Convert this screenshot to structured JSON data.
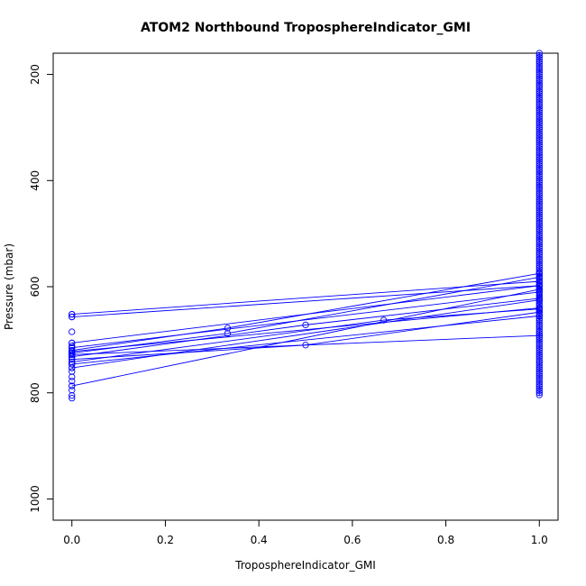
{
  "chart_data": {
    "type": "line",
    "title": "ATOM2 Northbound TroposphereIndicator_GMI",
    "xlabel": "TroposphereIndicator_GMI",
    "ylabel": "Pressure (mbar)",
    "xlim": [
      -0.04,
      1.04
    ],
    "ylim": [
      1040,
      160
    ],
    "y_reversed": true,
    "xticks": [
      0.0,
      0.2,
      0.4,
      0.6,
      0.8,
      1.0
    ],
    "xtick_labels": [
      "0.0",
      "0.2",
      "0.4",
      "0.6",
      "0.8",
      "1.0"
    ],
    "yticks": [
      200,
      400,
      600,
      800,
      1000
    ],
    "ytick_labels": [
      "200",
      "400",
      "600",
      "800",
      "1000"
    ],
    "grid": false,
    "color": "#0000ff",
    "marker": "open-circle",
    "x1_points_y_range": [
      160,
      805
    ],
    "series": [
      {
        "x": [
          0,
          1
        ],
        "y": [
          652,
          590
        ]
      },
      {
        "x": [
          0,
          1
        ],
        "y": [
          657,
          598
        ]
      },
      {
        "x": [
          0,
          1
        ],
        "y": [
          706,
          598
        ]
      },
      {
        "x": [
          0,
          1
        ],
        "y": [
          715,
          610
        ]
      },
      {
        "x": [
          0,
          0.333,
          1
        ],
        "y": [
          720,
          678,
          575
        ]
      },
      {
        "x": [
          0,
          0.333,
          1
        ],
        "y": [
          725,
          688,
          582
        ]
      },
      {
        "x": [
          0,
          0.5,
          1
        ],
        "y": [
          732,
          672,
          622
        ]
      },
      {
        "x": [
          0,
          0.5,
          1
        ],
        "y": [
          737,
          710,
          648
        ]
      },
      {
        "x": [
          0,
          0.667,
          1
        ],
        "y": [
          742,
          663,
          642
        ]
      },
      {
        "x": [
          0,
          1
        ],
        "y": [
          728,
          692
        ]
      },
      {
        "x": [
          0,
          1
        ],
        "y": [
          746,
          655
        ]
      },
      {
        "x": [
          0,
          1
        ],
        "y": [
          753,
          625
        ]
      },
      {
        "x": [
          0,
          1
        ],
        "y": [
          787,
          605
        ]
      },
      {
        "x": [
          0,
          1
        ],
        "y": [
          722,
          640
        ]
      }
    ],
    "x0_points_y": [
      652,
      657,
      685,
      706,
      712,
      715,
      720,
      725,
      728,
      732,
      737,
      742,
      746,
      753,
      760,
      770,
      778,
      787,
      795,
      805,
      810
    ]
  }
}
